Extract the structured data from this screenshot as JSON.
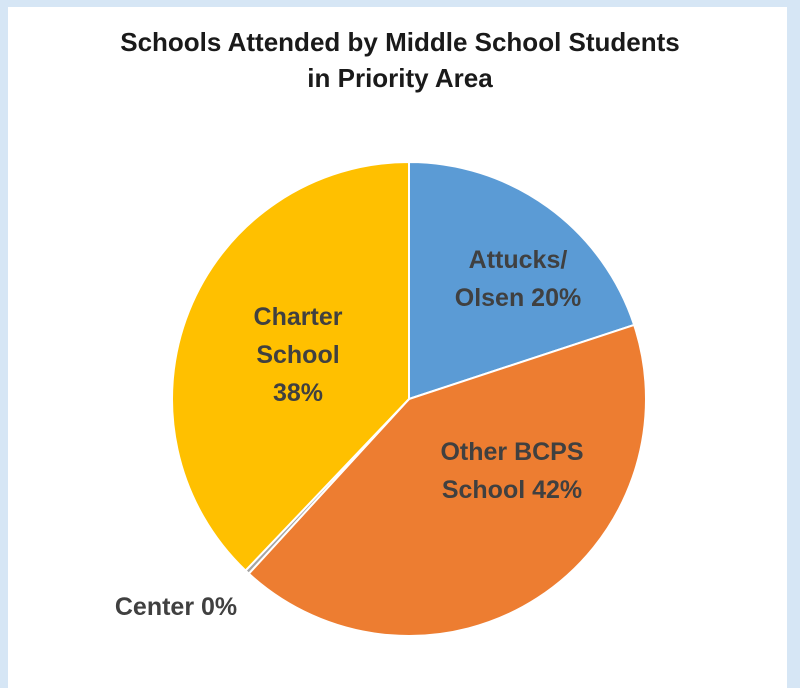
{
  "chart_data": {
    "type": "pie",
    "title_lines": [
      "Schools Attended by Middle School Students",
      "in Priority Area"
    ],
    "slices": [
      {
        "category": "Attucks/ Olsen",
        "value": 20,
        "color": "#5b9bd5",
        "label_lines": [
          "Attucks/",
          "Olsen 20%"
        ]
      },
      {
        "category": "Other BCPS School",
        "value": 42,
        "color": "#ed7d31",
        "label_lines": [
          "Other BCPS",
          "School 42%"
        ]
      },
      {
        "category": "Center",
        "value": 0.3,
        "color": "#a5a5a5",
        "label_lines": [
          "Center 0%"
        ]
      },
      {
        "category": "Charter School",
        "value": 38,
        "color": "#ffc000",
        "label_lines": [
          "Charter",
          "School",
          "38%"
        ]
      }
    ]
  }
}
